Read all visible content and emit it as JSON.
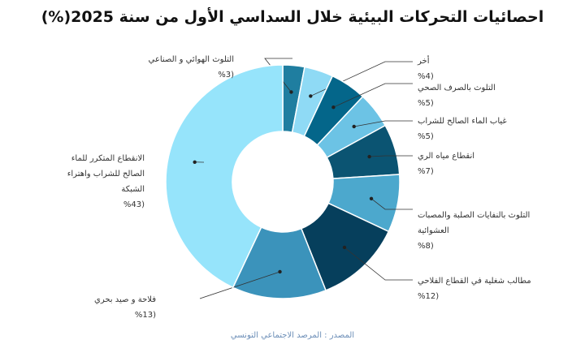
{
  "title": "احصائيات التحركات البيئية خلال السداسي الأول من سنة 2025(%)",
  "source": "المصدر : المرصد الاجتماعي التونسي",
  "chart_data": {
    "type": "pie",
    "donut": true,
    "legend": "none",
    "title": "احصائيات التحركات البيئية خلال السداسي الأول من سنة 2025(%)",
    "slices": [
      {
        "name": "التلوث الهوائي و الصناعي",
        "pct_label": "(%3",
        "value": 3,
        "color": "#1f7ea0"
      },
      {
        "name": "أخر",
        "pct_label": "(%4",
        "value": 4,
        "color": "#8fdaf5"
      },
      {
        "name": "التلوث بالصرف الصحي",
        "pct_label": "(%5",
        "value": 5,
        "color": "#04668a"
      },
      {
        "name": "غياب الماء الصالح للشراب",
        "pct_label": "(%5",
        "value": 5,
        "color": "#6cc3e5"
      },
      {
        "name": "انقطاع مياه الري",
        "pct_label": "(%7",
        "value": 7,
        "color": "#0b5472"
      },
      {
        "name": "التلوث بالنفايات الصلبة والمصبات العشوائية",
        "pct_label": "(%8",
        "value": 8,
        "color": "#4ca8cd"
      },
      {
        "name": "مطالب شغلية في القطاع الفلاحي",
        "pct_label": "(%12",
        "value": 12,
        "color": "#063f5c"
      },
      {
        "name": "فلاحة و صيد بحري",
        "pct_label": "(%13",
        "value": 13,
        "color": "#3b93bb"
      },
      {
        "name": "الانقطاع المتكرر للماء الصالح للشراب واهتراء الشبكة",
        "pct_label": "(%43",
        "value": 43,
        "color": "#96e4fb"
      }
    ]
  }
}
